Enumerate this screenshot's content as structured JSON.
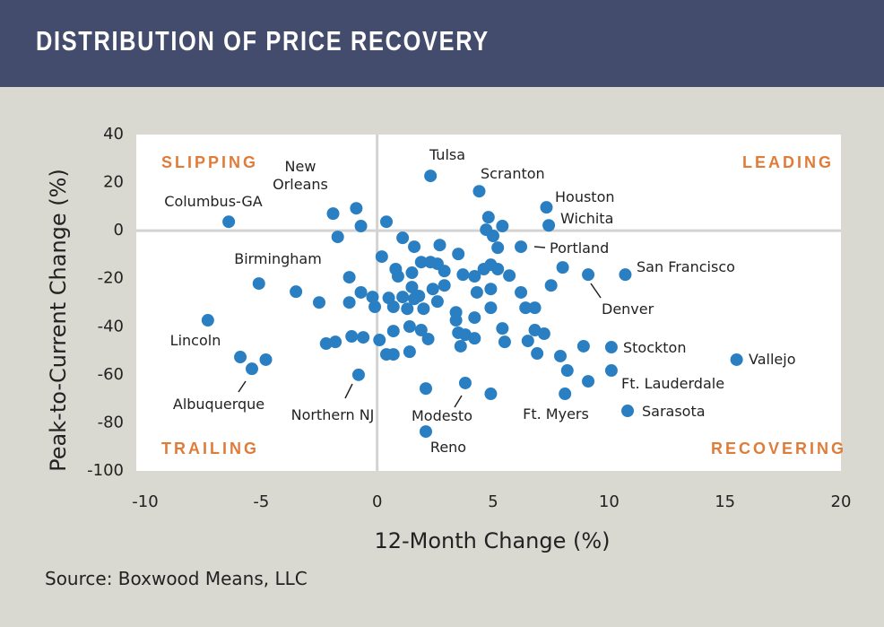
{
  "chart_data": {
    "type": "scatter",
    "title": "DISTRIBUTION OF PRICE RECOVERY",
    "x_label": "12-Month Change (%)",
    "y_label": "Peak-to-Current Change (%)",
    "source": "Source: Boxwood Means, LLC",
    "quadrants": [
      "SLIPPING",
      "LEADING",
      "TRAILING",
      "RECOVERING"
    ],
    "xlim": [
      -10,
      20
    ],
    "ylim": [
      -100,
      40
    ],
    "xticks": [
      -10,
      -5,
      0,
      5,
      10,
      15,
      20
    ],
    "yticks": [
      40,
      20,
      0,
      -20,
      -40,
      -60,
      -80,
      -100
    ],
    "color": "#2a7fc2",
    "points": {
      "labels": [
        "Tulsa",
        "Scranton",
        "Houston",
        "Wichita",
        "Portland",
        "San Francisco",
        "Denver",
        "Stockton",
        "Vallejo",
        "Ft. Lauderdale",
        "Sarasota",
        "Ft. Myers",
        "Modesto",
        "Reno",
        "Northern NJ",
        "Albuquerque",
        "Lincoln",
        "Birmingham",
        "Columbus-GA",
        "New Orleans"
      ],
      "x": [
        2.3,
        4.4,
        7.3,
        7.4,
        6.2,
        10.7,
        9.1,
        10.1,
        15.5,
        10.1,
        10.8,
        8.1,
        3.8,
        2.1,
        -0.8,
        -5.4,
        -7.3,
        -3.5,
        -6.4,
        -1.9,
        -0.9,
        -0.7,
        -1.7,
        0.4,
        1.1,
        1.6,
        0.2,
        0.8,
        0.9,
        1.5,
        1.9,
        2.7,
        2.3,
        2.6,
        2.9,
        3.5,
        3.7,
        4.2,
        4.6,
        4.9,
        5.2,
        4.8,
        5.4,
        4.7,
        5.0,
        5.2,
        5.7,
        4.3,
        4.9,
        4.9,
        6.2,
        6.4,
        6.8,
        4.2,
        3.4,
        3.5,
        3.8,
        3.6,
        4.2,
        5.4,
        5.5,
        6.5,
        6.8,
        7.2,
        6.9,
        7.9,
        7.5,
        8.0,
        -1.2,
        -0.7,
        -1.2,
        -1.8,
        -2.2,
        -1.1,
        -0.6,
        0.1,
        0.7,
        1.4,
        1.9,
        2.2,
        1.4,
        0.7,
        0.4,
        -0.1,
        -0.2,
        0.5,
        1.1,
        0.7,
        1.6,
        1.8,
        2.0,
        2.6,
        2.4,
        2.9,
        3.4,
        1.3,
        1.5,
        -5.1,
        -5.9,
        -4.8,
        -2.5,
        4.9,
        2.1,
        8.9,
        8.2,
        9.1
      ],
      "y": [
        22.8,
        16.4,
        9.7,
        2.2,
        -6.7,
        -18.3,
        -18.3,
        -48.5,
        -53.7,
        -58.2,
        -75,
        -67.9,
        -63.4,
        -83.6,
        -60,
        -57.5,
        -37.3,
        -25.4,
        3.7,
        7.1,
        9.3,
        1.9,
        -2.6,
        3.7,
        -3.0,
        -6.7,
        -10.8,
        -16.0,
        -19.0,
        -17.5,
        -13.1,
        -6.0,
        -13.1,
        -13.8,
        -16.8,
        -9.7,
        -18.3,
        -19.0,
        -16.0,
        -14.2,
        -16.0,
        5.6,
        1.9,
        0.4,
        -2.2,
        -7.1,
        -18.7,
        -25.7,
        -24.3,
        -32.1,
        -25.7,
        -32.1,
        -32.1,
        -36.2,
        -37.3,
        -42.5,
        -43.3,
        -48.1,
        -44.8,
        -40.7,
        -46.3,
        -45.9,
        -41.4,
        -42.9,
        -51.1,
        -52.2,
        -22.8,
        -15.3,
        -19.4,
        -25.7,
        -29.9,
        -46.3,
        -47.0,
        -44.0,
        -44.4,
        -45.5,
        -41.8,
        -39.9,
        -41.4,
        -45.1,
        -50.4,
        -51.5,
        -51.5,
        -31.7,
        -27.6,
        -28.0,
        -27.6,
        -31.7,
        -28.4,
        -27.2,
        -32.5,
        -29.5,
        -24.3,
        -22.8,
        -34.0,
        -32.5,
        -23.5,
        -22.0,
        -52.6,
        -53.7,
        -29.9,
        -67.9,
        -65.7,
        -48.1,
        -58.2,
        -62.7
      ]
    }
  }
}
